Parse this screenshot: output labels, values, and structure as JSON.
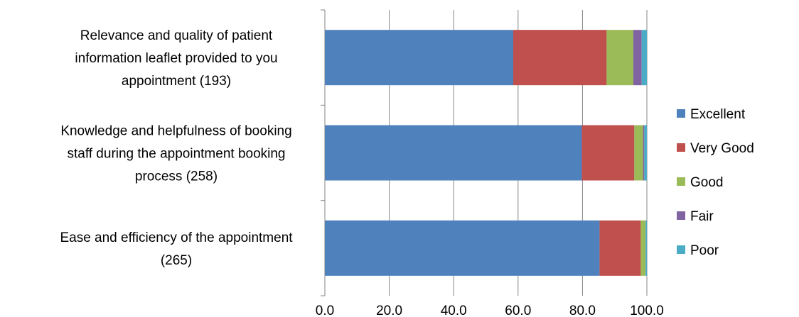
{
  "chart_data": {
    "type": "bar",
    "orientation": "horizontal",
    "stacked": true,
    "categories": [
      [
        "Relevance and quality of patient",
        "information leaflet provided to you",
        "appointment (193)"
      ],
      [
        "Knowledge and helpfulness of booking",
        "staff during the appointment booking",
        "process (258)"
      ],
      [
        "Ease and efficiency of the appointment",
        "(265)"
      ]
    ],
    "series": [
      {
        "name": "Excellent",
        "color": "#4F81BD",
        "values": [
          58.5,
          79.8,
          85.3
        ]
      },
      {
        "name": "Very Good",
        "color": "#C0504D",
        "values": [
          29.0,
          16.3,
          12.8
        ]
      },
      {
        "name": "Good",
        "color": "#9BBB59",
        "values": [
          8.3,
          2.7,
          1.5
        ]
      },
      {
        "name": "Fair",
        "color": "#8064A2",
        "values": [
          2.6,
          0.4,
          0.0
        ]
      },
      {
        "name": "Poor",
        "color": "#4BACC6",
        "values": [
          1.6,
          0.8,
          0.4
        ]
      }
    ],
    "xlim": [
      0,
      100
    ],
    "x_ticks": [
      "0.0",
      "20.0",
      "40.0",
      "60.0",
      "80.0",
      "100.0"
    ],
    "grid": true,
    "legend_position": "right"
  }
}
